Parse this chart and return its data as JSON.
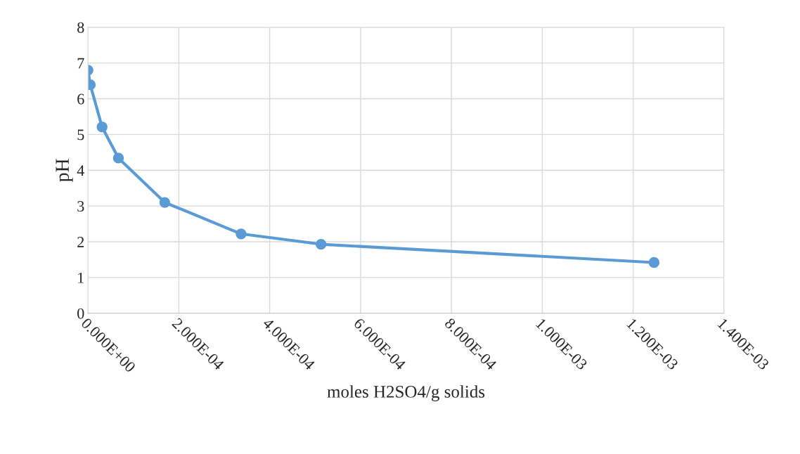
{
  "chart_data": {
    "type": "line",
    "xlabel": "moles H2SO4/g solids",
    "ylabel": "pH",
    "x": [
      0,
      5e-06,
      3.1e-05,
      6.7e-05,
      0.000169,
      0.000337,
      0.000513,
      0.001246
    ],
    "series": [
      {
        "color": "#5b9bd5",
        "values": [
          6.8,
          6.39,
          5.21,
          4.34,
          3.1,
          2.22,
          1.93,
          1.42
        ]
      }
    ],
    "xlim": [
      0,
      0.0014
    ],
    "xticks": [
      {
        "value": 0,
        "label": "0.000E+00"
      },
      {
        "value": 0.0002,
        "label": "2.000E-04"
      },
      {
        "value": 0.0004,
        "label": "4.000E-04"
      },
      {
        "value": 0.0006,
        "label": "6.000E-04"
      },
      {
        "value": 0.0008,
        "label": "8.000E-04"
      },
      {
        "value": 0.001,
        "label": "1.000E-03"
      },
      {
        "value": 0.0012,
        "label": "1.200E-03"
      },
      {
        "value": 0.0014,
        "label": "1.400E-03"
      }
    ],
    "ylim": [
      0,
      8
    ],
    "yticks": [
      0,
      1,
      2,
      3,
      4,
      5,
      6,
      7,
      8
    ],
    "grid": true,
    "marker": "circle",
    "line_style": "solid"
  }
}
